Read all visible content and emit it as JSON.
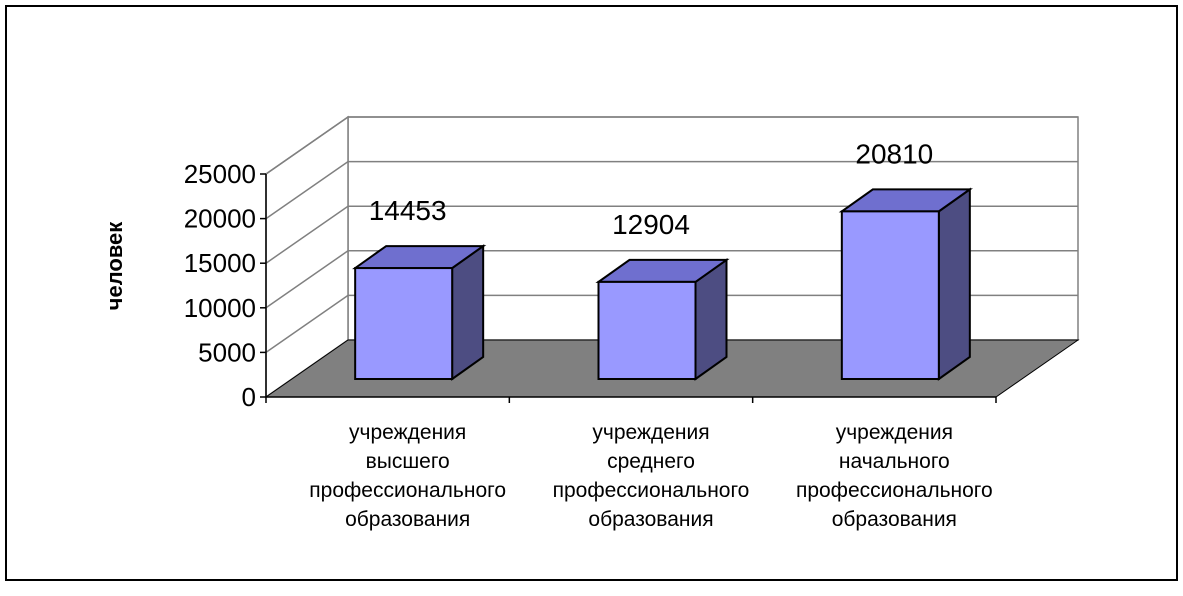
{
  "chart_data": {
    "type": "bar",
    "style": "3d-column",
    "categories": [
      [
        "учреждения",
        "высшего",
        "профессионального",
        "образования"
      ],
      [
        "учреждения",
        "среднего",
        "профессионального",
        "образования"
      ],
      [
        "учреждения",
        "начального",
        "профессионального",
        "образования"
      ]
    ],
    "values": [
      14453,
      12904,
      20810
    ],
    "data_labels": [
      "14453",
      "12904",
      "20810"
    ],
    "title": "",
    "xlabel": "",
    "ylabel": "человек",
    "ylim": [
      0,
      25000
    ],
    "yticks": [
      0,
      5000,
      10000,
      15000,
      20000,
      25000
    ],
    "grid": true,
    "legend": "none",
    "colors": {
      "bar_front": "#9999ff",
      "bar_top": "#6f6fcf",
      "bar_side": "#4d4d82",
      "floor": "#808080",
      "gridline": "#808080",
      "border": "#000000"
    }
  }
}
